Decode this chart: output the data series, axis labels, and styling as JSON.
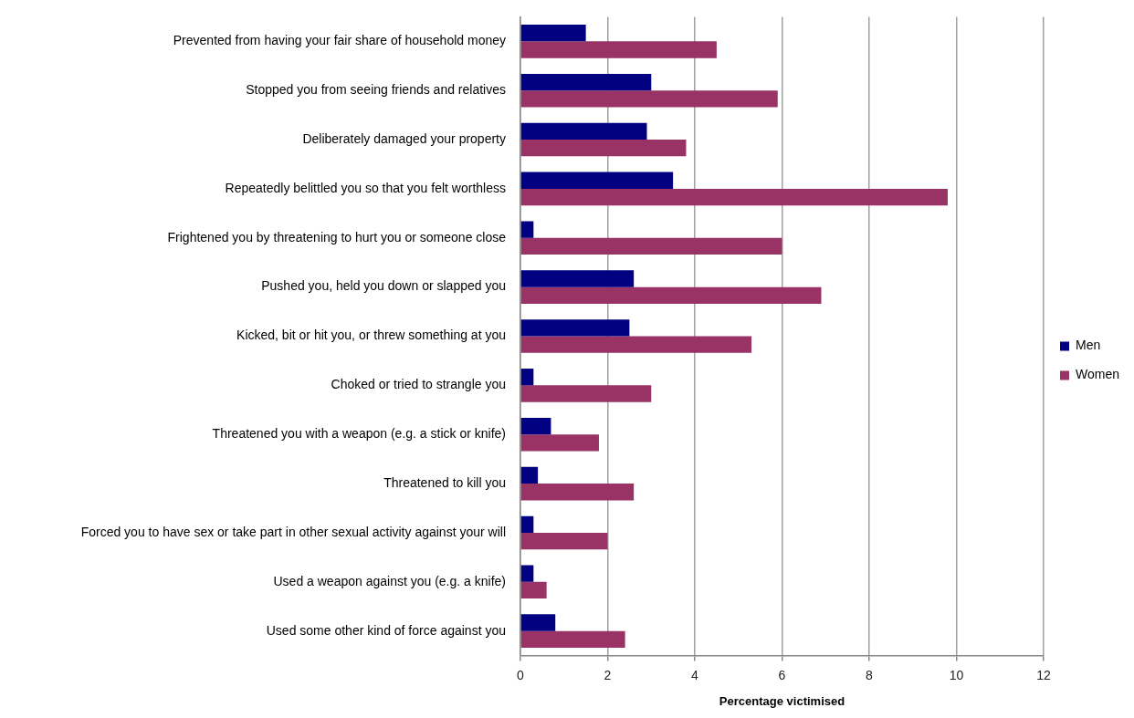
{
  "chart_data": {
    "type": "bar",
    "orientation": "horizontal",
    "categories": [
      "Prevented from having your fair share of household money",
      "Stopped you from seeing friends and relatives",
      "Deliberately damaged your property",
      "Repeatedly belittled you so that you felt worthless",
      "Frightened you by threatening to hurt you or someone close",
      "Pushed you, held you down or slapped you",
      "Kicked, bit or hit you, or threw something at you",
      "Choked or tried to strangle you",
      "Threatened you with a weapon (e.g. a stick or knife)",
      "Threatened to kill you",
      "Forced you to have sex or take part in other sexual activity against your will",
      "Used a weapon against you (e.g. a knife)",
      "Used some other kind of force against you"
    ],
    "series": [
      {
        "name": "Men",
        "color": "#000080",
        "values": [
          1.5,
          3.0,
          2.9,
          3.5,
          0.3,
          2.6,
          2.5,
          0.3,
          0.7,
          0.4,
          0.3,
          0.3,
          0.8
        ]
      },
      {
        "name": "Women",
        "color": "#993366",
        "values": [
          4.5,
          5.9,
          3.8,
          9.8,
          6.0,
          6.9,
          5.3,
          3.0,
          1.8,
          2.6,
          2.0,
          0.6,
          2.4
        ]
      }
    ],
    "xlabel": "Percentage victimised",
    "xlim": [
      0,
      12
    ],
    "xticks": [
      0,
      2,
      4,
      6,
      8,
      10,
      12
    ],
    "grid": "x",
    "legend": "right"
  }
}
